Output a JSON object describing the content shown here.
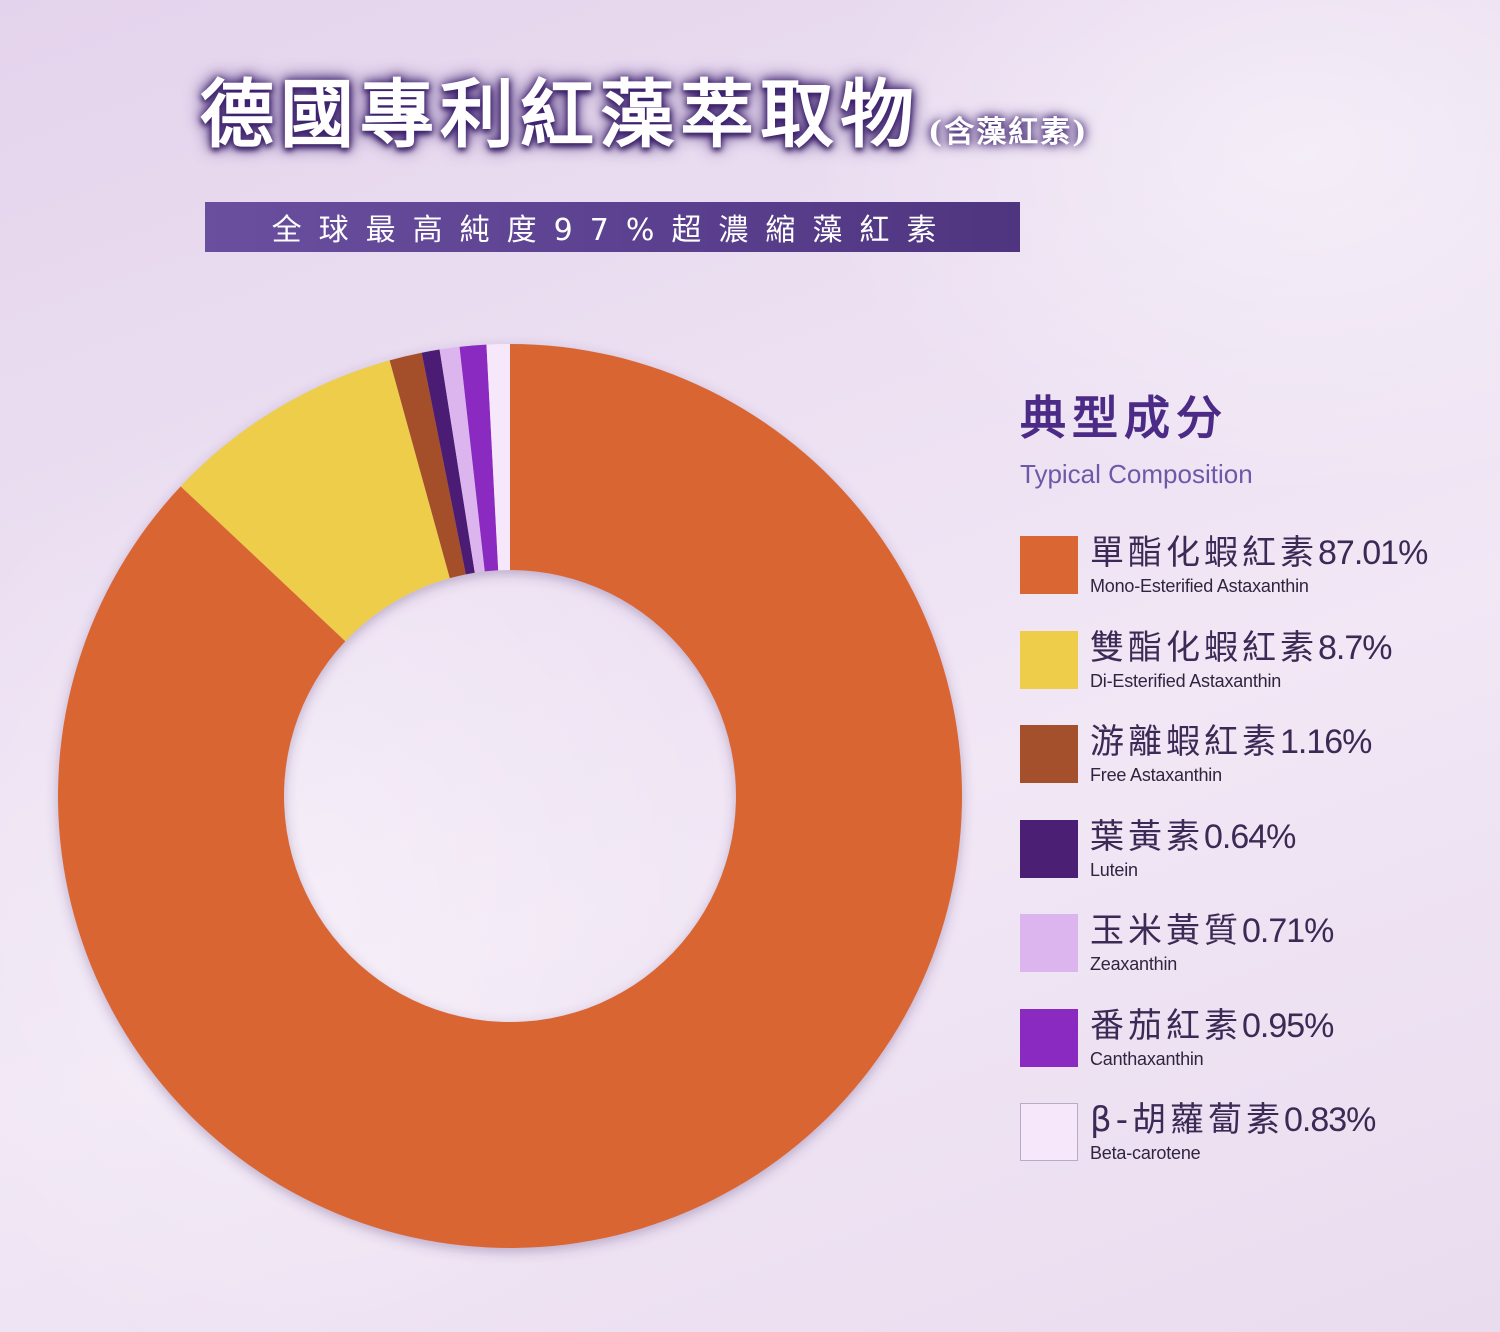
{
  "header": {
    "title": "德國專利紅藻萃取物",
    "title_suffix": "(含藻紅素)",
    "subtitle": "全球最高純度97%超濃縮藻紅素"
  },
  "legend": {
    "title": "典型成分",
    "title_en": "Typical Composition"
  },
  "chart_data": {
    "type": "pie",
    "title": "",
    "slices": [
      {
        "label": "單酯化蝦紅素",
        "label_en": "Mono-Esterified Astaxanthin",
        "value": 87.01,
        "display": "87.01%",
        "color": "#d96633"
      },
      {
        "label": "雙酯化蝦紅素",
        "label_en": "Di-Esterified Astaxanthin",
        "value": 8.7,
        "display": "8.7%",
        "color": "#edcd4a"
      },
      {
        "label": "游離蝦紅素",
        "label_en": "Free Astaxanthin",
        "value": 1.16,
        "display": "1.16%",
        "color": "#a4502c"
      },
      {
        "label": "葉黃素",
        "label_en": "Lutein",
        "value": 0.64,
        "display": "0.64%",
        "color": "#4b1f73"
      },
      {
        "label": "玉米黃質",
        "label_en": "Zeaxanthin",
        "value": 0.71,
        "display": "0.71%",
        "color": "#dcb5ee"
      },
      {
        "label": "番茄紅素",
        "label_en": "Canthaxanthin",
        "value": 0.95,
        "display": "0.95%",
        "color": "#8a2ac0"
      },
      {
        "label": "β-胡蘿蔔素",
        "label_en": "Beta-carotene",
        "value": 0.83,
        "display": "0.83%",
        "color": "#f7e7fb"
      }
    ],
    "donut": true,
    "legend_position": "right"
  }
}
